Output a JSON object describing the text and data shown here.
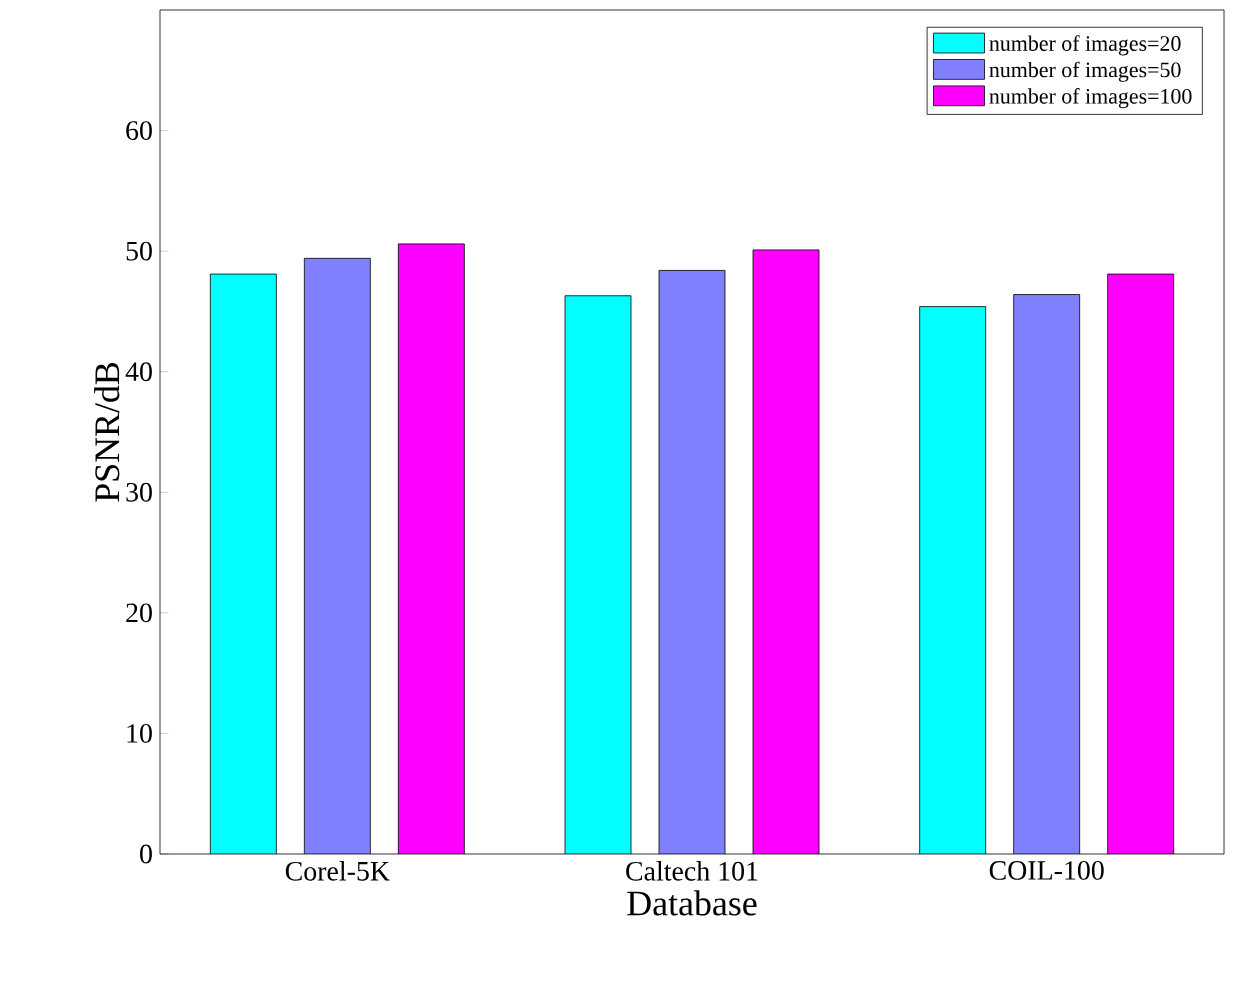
{
  "chart_data": {
    "type": "bar",
    "xlabel": "Database",
    "ylabel": "PSNR/dB",
    "categories": [
      "Corel-5K",
      "Caltech 101",
      "COIL-100"
    ],
    "series": [
      {
        "name": "number of images=20",
        "color": "#00ffff",
        "values": [
          48.1,
          46.3,
          45.4
        ]
      },
      {
        "name": "number of images=50",
        "color": "#8080ff",
        "values": [
          49.4,
          48.4,
          46.4
        ]
      },
      {
        "name": "number of images=100",
        "color": "#ff00ff",
        "values": [
          50.6,
          50.1,
          48.1
        ]
      }
    ],
    "ylim": [
      0,
      70
    ],
    "yticks": [
      0,
      10,
      20,
      30,
      40,
      50,
      60
    ],
    "legend": "top right",
    "grid": false
  }
}
